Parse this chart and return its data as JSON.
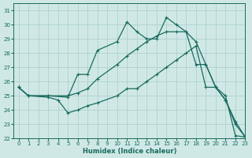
{
  "xlabel": "Humidex (Indice chaleur)",
  "ylabel": "",
  "xlim": [
    -0.5,
    23
  ],
  "ylim": [
    22,
    31.5
  ],
  "yticks": [
    22,
    23,
    24,
    25,
    26,
    27,
    28,
    29,
    30,
    31
  ],
  "xticks": [
    0,
    1,
    2,
    3,
    4,
    5,
    6,
    7,
    8,
    9,
    10,
    11,
    12,
    13,
    14,
    15,
    16,
    17,
    18,
    19,
    20,
    21,
    22,
    23
  ],
  "bg_color": "#cfe8e6",
  "grid_color": "#a8ccca",
  "line_color": "#1a6b5e",
  "lines": [
    {
      "x": [
        0,
        1,
        3,
        5,
        6,
        7,
        8,
        10,
        11,
        12,
        13,
        14,
        15,
        16,
        17,
        18,
        19,
        20,
        21,
        22,
        23
      ],
      "y": [
        25.6,
        25.0,
        25.0,
        24.9,
        26.5,
        26.5,
        28.2,
        28.8,
        30.2,
        29.5,
        29.0,
        29.0,
        30.5,
        30.0,
        29.5,
        28.8,
        27.2,
        25.6,
        24.7,
        23.2,
        22.1
      ]
    },
    {
      "x": [
        0,
        1,
        3,
        5,
        6,
        7,
        8,
        10,
        11,
        12,
        13,
        14,
        15,
        16,
        17,
        18,
        19,
        20,
        21,
        22,
        23
      ],
      "y": [
        25.6,
        25.0,
        25.0,
        25.0,
        25.2,
        25.5,
        26.2,
        27.2,
        27.8,
        28.3,
        28.8,
        29.2,
        29.5,
        29.5,
        29.5,
        27.2,
        27.2,
        25.6,
        25.0,
        22.2,
        22.1
      ]
    },
    {
      "x": [
        0,
        1,
        3,
        4,
        5,
        6,
        7,
        8,
        10,
        11,
        12,
        13,
        14,
        15,
        16,
        17,
        18,
        19,
        20,
        21,
        22,
        23
      ],
      "y": [
        25.6,
        25.0,
        24.9,
        24.7,
        23.8,
        24.0,
        24.3,
        24.5,
        25.0,
        25.5,
        25.5,
        26.0,
        26.5,
        27.0,
        27.5,
        28.0,
        28.5,
        25.6,
        25.6,
        24.7,
        23.0,
        22.1
      ]
    }
  ]
}
